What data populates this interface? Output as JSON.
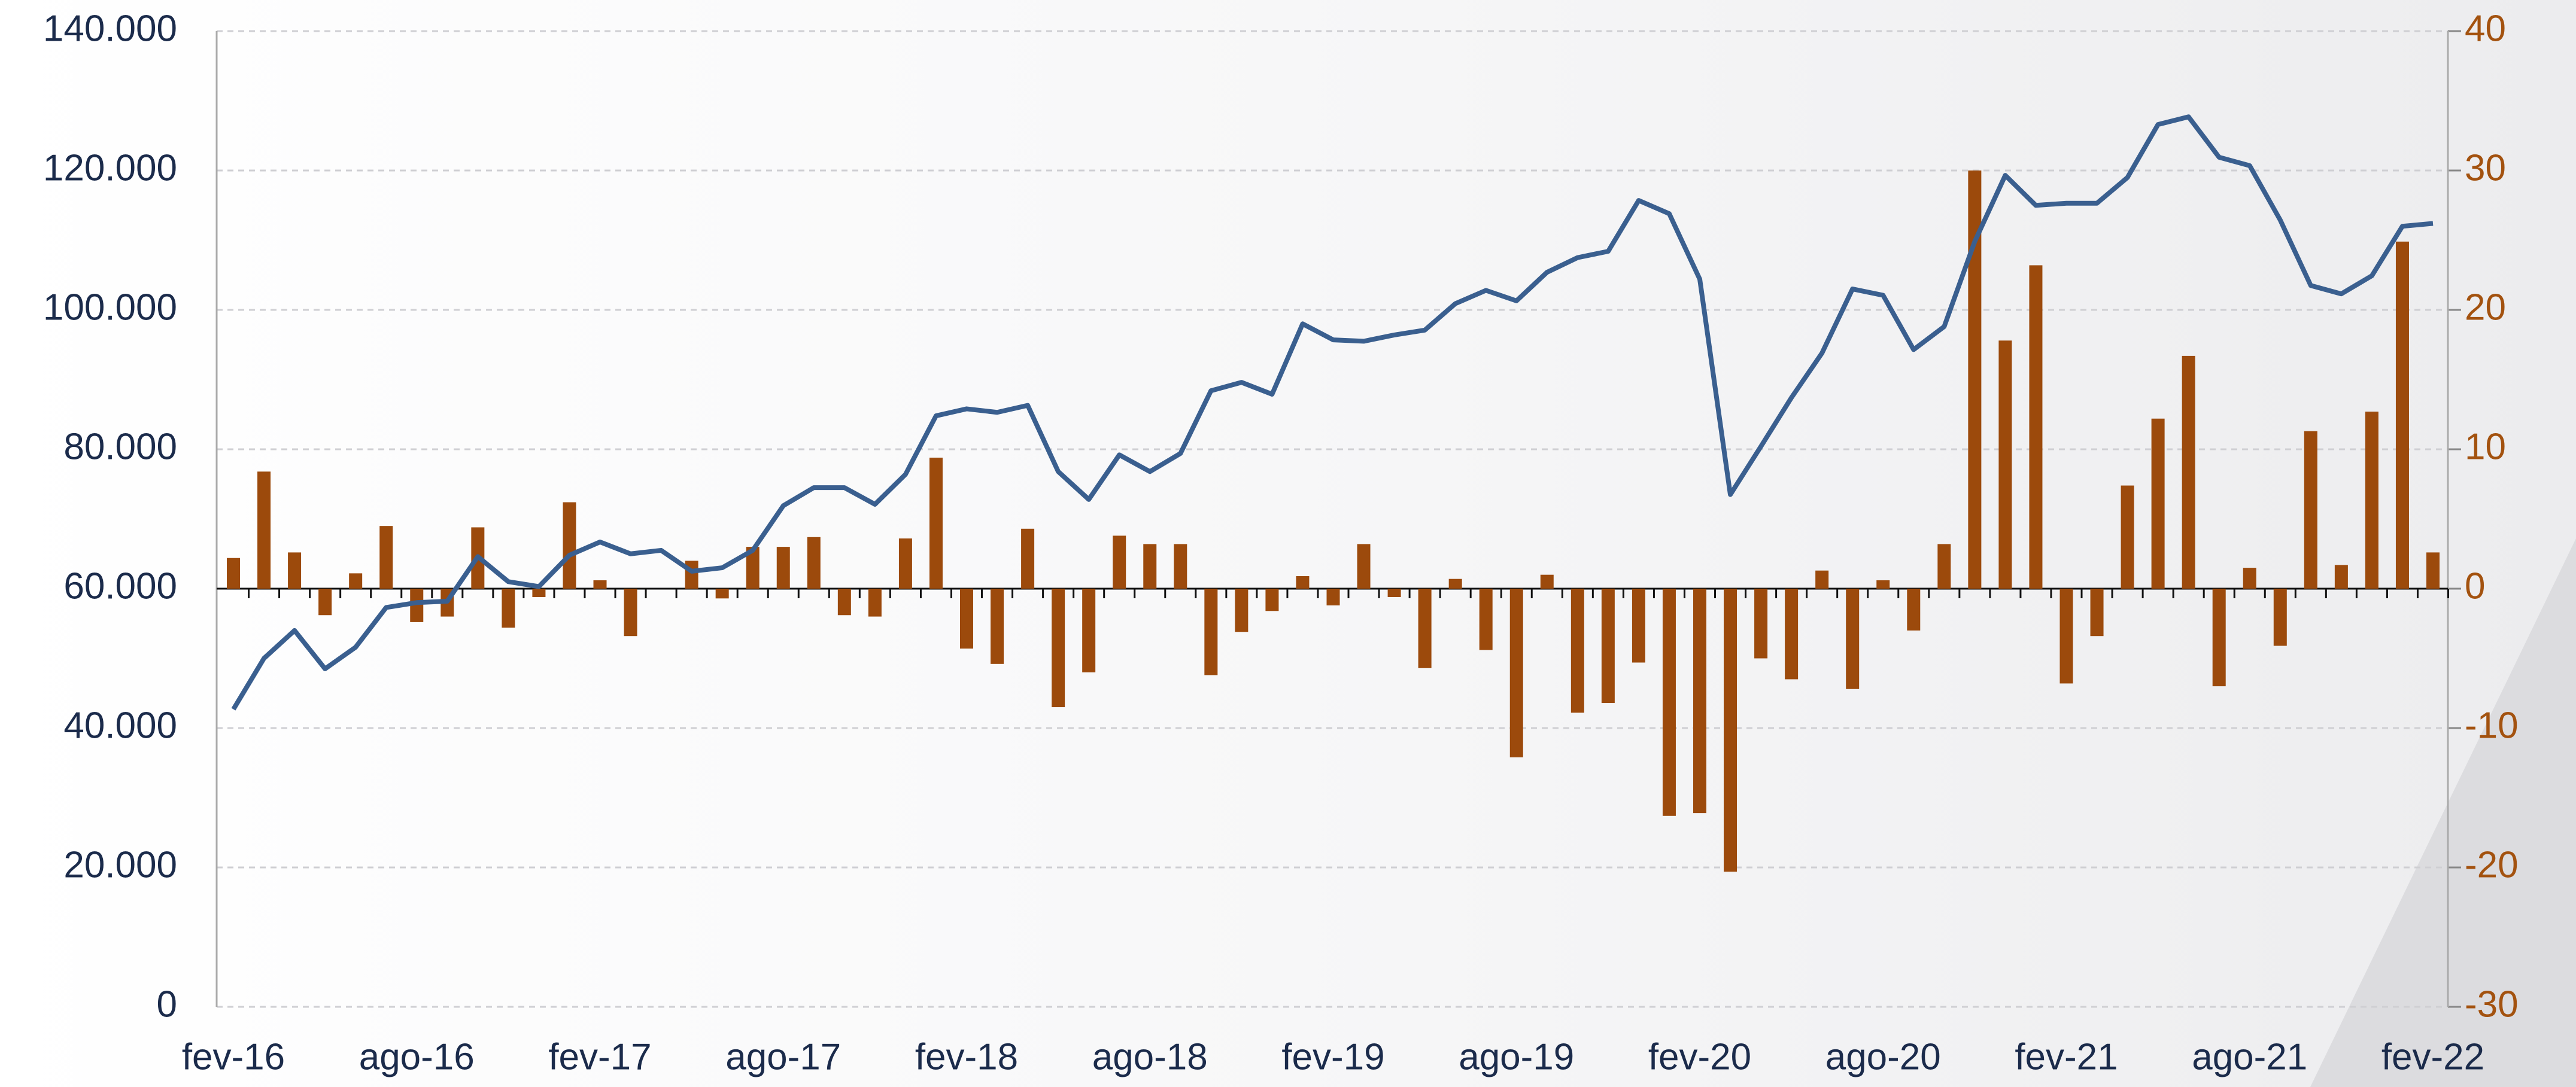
{
  "chart_data": {
    "type": "combo",
    "categories": [
      "fev-16",
      null,
      null,
      null,
      null,
      null,
      "ago-16",
      null,
      null,
      null,
      null,
      null,
      "fev-17",
      null,
      null,
      null,
      null,
      null,
      "ago-17",
      null,
      null,
      null,
      null,
      null,
      "fev-18",
      null,
      null,
      null,
      null,
      null,
      "ago-18",
      null,
      null,
      null,
      null,
      null,
      "fev-19",
      null,
      null,
      null,
      null,
      null,
      "ago-19",
      null,
      null,
      null,
      null,
      null,
      "fev-20",
      null,
      null,
      null,
      null,
      null,
      "ago-20",
      null,
      null,
      null,
      null,
      null,
      "fev-21",
      null,
      null,
      null,
      null,
      null,
      "ago-21",
      null,
      null,
      null,
      null,
      null,
      "fev-22"
    ],
    "series": [
      {
        "type": "bar",
        "axis": "y2",
        "color": "#9c4a0c",
        "values": [
          2.2,
          8.4,
          2.6,
          -1.9,
          1.1,
          4.5,
          -2.4,
          -2.0,
          4.4,
          -2.8,
          -0.6,
          6.2,
          0.6,
          -3.4,
          0,
          2.0,
          -0.7,
          3.0,
          3.0,
          3.7,
          -1.9,
          -2.0,
          3.6,
          9.4,
          -4.3,
          -5.4,
          4.3,
          -8.5,
          -6.0,
          3.8,
          3.2,
          3.2,
          -6.2,
          -3.1,
          -1.6,
          0.9,
          -1.2,
          3.2,
          -0.6,
          -5.7,
          0.7,
          -4.4,
          -12.1,
          1.0,
          -8.9,
          -8.2,
          -5.3,
          -16.3,
          -16.1,
          -20.3,
          -5.0,
          -6.5,
          1.3,
          -7.2,
          0.6,
          -3.0,
          3.2,
          30.0,
          17.8,
          23.2,
          -6.8,
          -3.4,
          7.4,
          12.2,
          16.7,
          -7.0,
          1.5,
          -4.1,
          11.3,
          1.7,
          12.7,
          24.9,
          2.6
        ]
      },
      {
        "type": "line",
        "axis": "y",
        "color": "#3a5f8f",
        "values": [
          42700,
          50000,
          54000,
          48500,
          51600,
          57300,
          58000,
          58200,
          64600,
          61000,
          60300,
          64800,
          66700,
          65000,
          65500,
          62500,
          63000,
          65500,
          71900,
          74500,
          74500,
          72100,
          76400,
          84800,
          85800,
          85300,
          86300,
          76800,
          72800,
          79200,
          76800,
          79400,
          88400,
          89600,
          87900,
          98000,
          95700,
          95500,
          96400,
          97100,
          100900,
          102800,
          101300,
          105400,
          107500,
          108400,
          115700,
          113800,
          104400,
          73500,
          80400,
          87400,
          93800,
          103000,
          102100,
          94300,
          97600,
          109800,
          119300,
          115000,
          115300,
          115300,
          119000,
          126600,
          127700,
          121900,
          120700,
          112900,
          103500,
          102300,
          104900,
          112000,
          112400
        ]
      }
    ],
    "ylim": [
      0,
      140000
    ],
    "yticks": [
      0,
      {
        "value": 20000,
        "label": "20.000"
      },
      {
        "value": 40000,
        "label": "40.000"
      },
      {
        "value": 60000,
        "label": "60.000"
      },
      {
        "value": 80000,
        "label": "80.000"
      },
      {
        "value": 100000,
        "label": "100.000"
      },
      {
        "value": 120000,
        "label": "120.000"
      },
      {
        "value": 140000,
        "label": "140.000"
      }
    ],
    "y2lim": [
      -30,
      40
    ],
    "y2ticks": [
      -30,
      -20,
      -10,
      0,
      10,
      20,
      30,
      40
    ],
    "grid": true
  }
}
